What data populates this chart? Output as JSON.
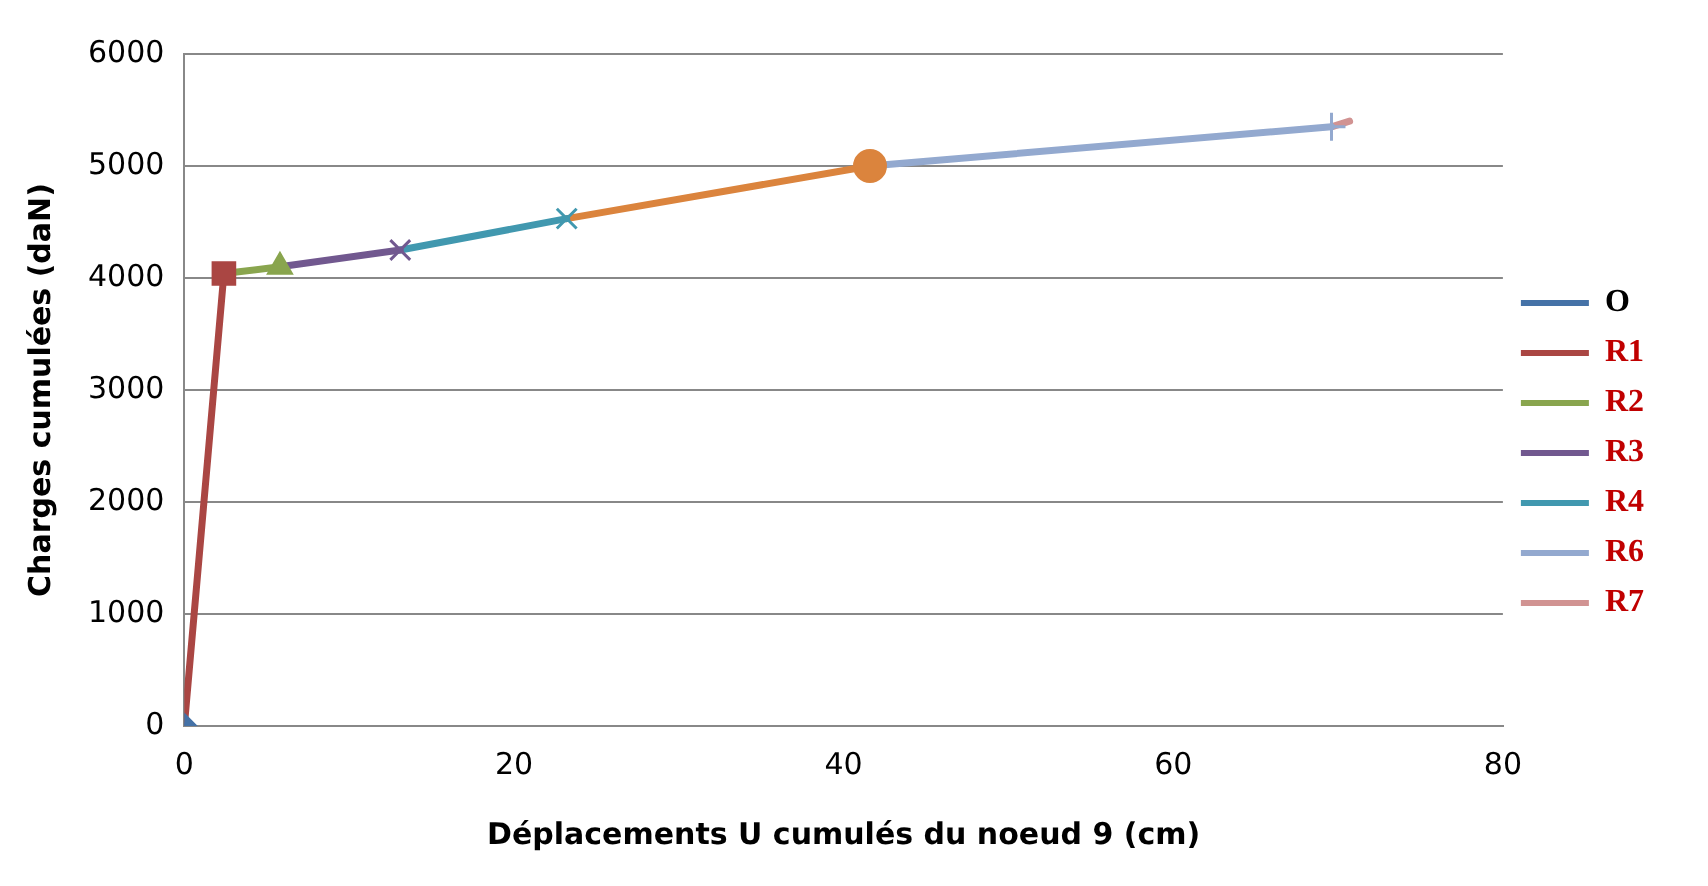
{
  "chart_data": {
    "type": "line",
    "xlabel": "Déplacements U cumulés du noeud 9 (cm)",
    "ylabel": "Charges cumulées (daN)",
    "xlim": [
      0,
      80
    ],
    "xticks": [
      0,
      20,
      40,
      60,
      80
    ],
    "ylim": [
      0,
      6000
    ],
    "yticks": [
      0,
      1000,
      2000,
      3000,
      4000,
      5000,
      6000
    ],
    "grid": "y",
    "legend": "right",
    "series": [
      {
        "name": "O",
        "color": "#4572a7",
        "marker": "diamond",
        "x": [
          0
        ],
        "values": [
          0
        ]
      },
      {
        "name": "R1",
        "color": "#aa4643",
        "marker": "square",
        "x": [
          0,
          2.4
        ],
        "values": [
          0,
          4040
        ]
      },
      {
        "name": "R2",
        "color": "#89a54e",
        "marker": "triangle",
        "x": [
          2.4,
          5.8
        ],
        "values": [
          4040,
          4100
        ]
      },
      {
        "name": "R3",
        "color": "#71588f",
        "marker": "cross",
        "x": [
          5.8,
          13.1
        ],
        "values": [
          4100,
          4250
        ]
      },
      {
        "name": "R4",
        "color": "#4198af",
        "marker": "cross",
        "x": [
          13.1,
          23.2
        ],
        "values": [
          4250,
          4530
        ]
      },
      {
        "color": "#db843d",
        "marker": "circle",
        "x": [
          23.2,
          41.6
        ],
        "values": [
          4530,
          5000
        ]
      },
      {
        "name": "R6",
        "color": "#93a9cf",
        "marker": "plus",
        "x": [
          41.6,
          69.6
        ],
        "values": [
          5000,
          5350
        ]
      },
      {
        "name": "R7",
        "color": "#d19392",
        "marker": "none",
        "x": [
          69.6,
          70.7
        ],
        "values": [
          5350,
          5400
        ]
      }
    ]
  }
}
